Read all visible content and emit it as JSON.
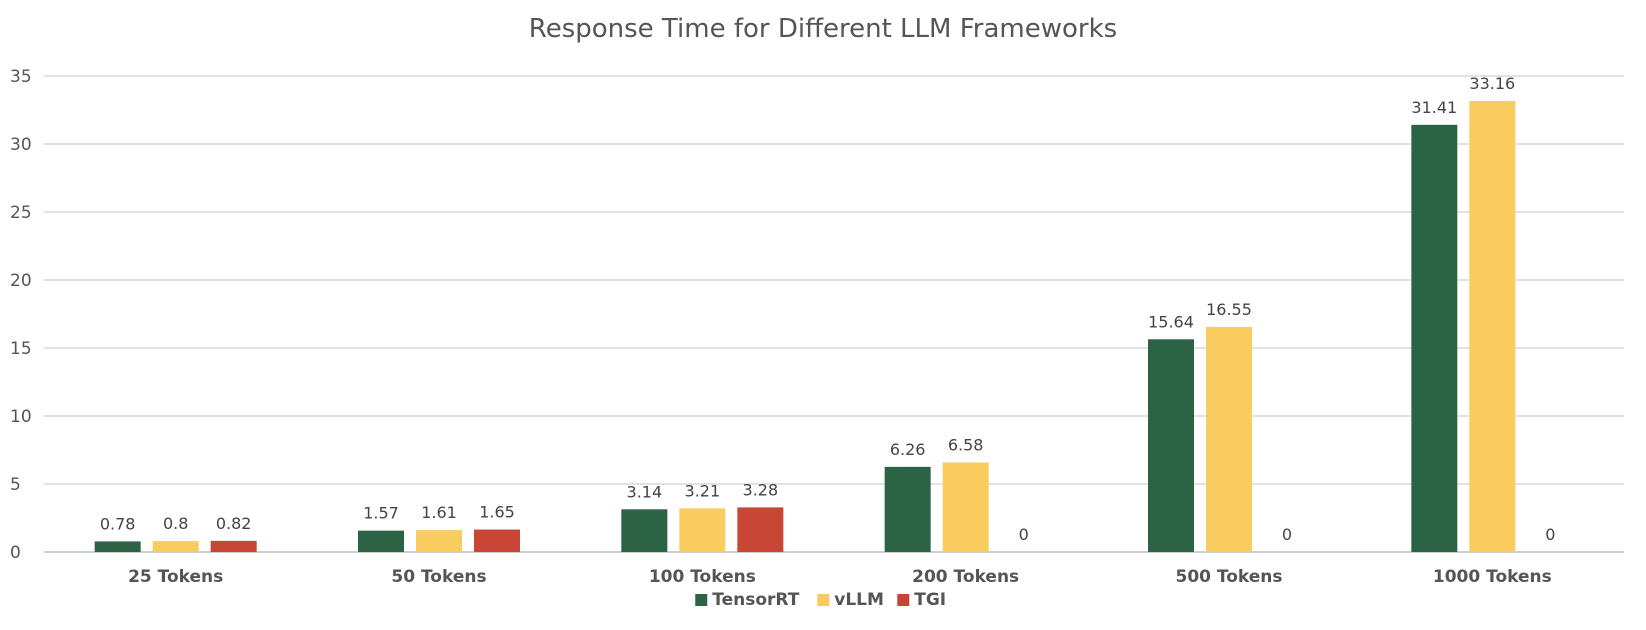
{
  "chart_data": {
    "type": "bar",
    "title": "Response Time for Different LLM Frameworks",
    "xlabel": "",
    "ylabel": "",
    "ylim": [
      0,
      35
    ],
    "yticks": [
      0,
      5,
      10,
      15,
      20,
      25,
      30,
      35
    ],
    "grid": true,
    "legend_position": "bottom",
    "categories": [
      "25 Tokens",
      "50 Tokens",
      "100 Tokens",
      "200 Tokens",
      "500 Tokens",
      "1000 Tokens"
    ],
    "series": [
      {
        "name": "TensorRT",
        "color": "#2b6344",
        "values": [
          0.78,
          1.57,
          3.14,
          6.26,
          15.64,
          31.41
        ]
      },
      {
        "name": "vLLM",
        "color": "#f8cc5e",
        "values": [
          0.8,
          1.61,
          3.21,
          6.58,
          16.55,
          33.16
        ]
      },
      {
        "name": "TGI",
        "color": "#c84635",
        "values": [
          0.82,
          1.65,
          3.28,
          0,
          0,
          0
        ]
      }
    ]
  }
}
